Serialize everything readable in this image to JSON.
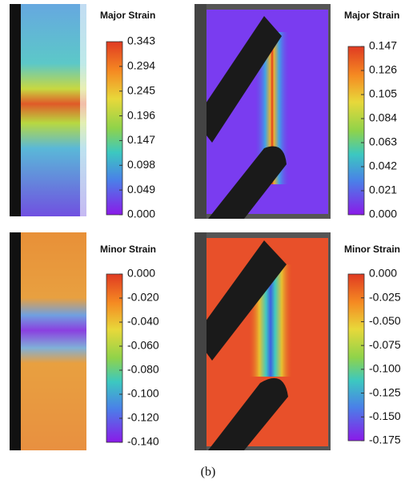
{
  "panels": [
    {
      "colorbar": {
        "title": "Major Strain",
        "ticks": [
          "0.343",
          "0.294",
          "0.245",
          "0.196",
          "0.147",
          "0.098",
          "0.049",
          "0.000"
        ]
      }
    },
    {
      "colorbar": {
        "title": "Major Strain",
        "ticks": [
          "0.147",
          "0.126",
          "0.105",
          "0.084",
          "0.063",
          "0.042",
          "0.021",
          "0.000"
        ]
      }
    },
    {
      "colorbar": {
        "title": "Minor Strain",
        "ticks": [
          "0.000",
          "-0.020",
          "-0.040",
          "-0.060",
          "-0.080",
          "-0.100",
          "-0.120",
          "-0.140"
        ]
      }
    },
    {
      "colorbar": {
        "title": "Minor Strain",
        "ticks": [
          "0.000",
          "-0.025",
          "-0.050",
          "-0.075",
          "-0.100",
          "-0.125",
          "-0.150",
          "-0.175"
        ]
      }
    }
  ],
  "caption": "(b)"
}
